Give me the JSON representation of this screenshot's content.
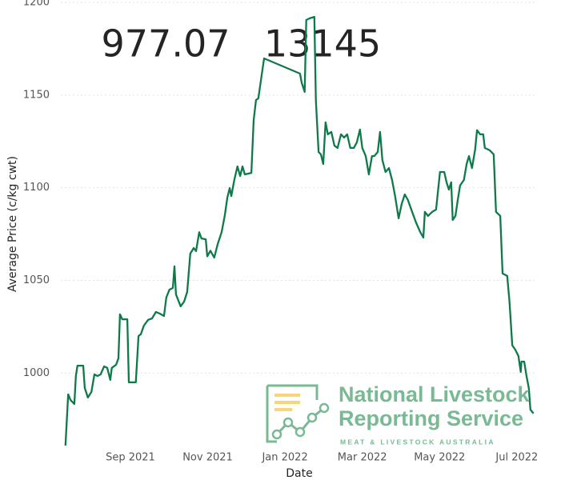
{
  "kpis": [
    "977.07",
    "13145"
  ],
  "logo": {
    "line1": "National Livestock",
    "line2": "Reporting Service",
    "subtitle": "MEAT & LIVESTOCK AUSTRALIA"
  },
  "chart_data": {
    "type": "line",
    "x_label": "Date",
    "y_label": "Average Price (c/kg cwt)",
    "color": "#0e7a4a",
    "grid": true,
    "xlim": [
      6.2,
      18.5
    ],
    "xticks": [
      {
        "value": 8,
        "label": "Sep 2021"
      },
      {
        "value": 10,
        "label": "Nov 2021"
      },
      {
        "value": 12,
        "label": "Jan 2022"
      },
      {
        "value": 14,
        "label": "Mar 2022"
      },
      {
        "value": 16,
        "label": "May 2022"
      },
      {
        "value": 18,
        "label": "Jul 2022"
      }
    ],
    "ylim": [
      960,
      1200
    ],
    "yticks": [
      1000,
      1050,
      1100,
      1150,
      1200
    ],
    "x": [
      6.32,
      6.39,
      6.45,
      6.55,
      6.59,
      6.63,
      6.78,
      6.82,
      6.9,
      6.99,
      7.07,
      7.15,
      7.23,
      7.32,
      7.4,
      7.48,
      7.52,
      7.63,
      7.69,
      7.73,
      7.79,
      7.92,
      7.96,
      8.14,
      8.21,
      8.27,
      8.35,
      8.46,
      8.56,
      8.66,
      8.77,
      8.87,
      8.93,
      9.01,
      9.1,
      9.14,
      9.18,
      9.3,
      9.39,
      9.47,
      9.55,
      9.64,
      9.7,
      9.78,
      9.84,
      9.95,
      9.99,
      10.07,
      10.17,
      10.26,
      10.36,
      10.44,
      10.51,
      10.57,
      10.61,
      10.69,
      10.77,
      10.84,
      10.9,
      10.96,
      11.13,
      11.19,
      11.25,
      11.31,
      11.46,
      12.39,
      12.43,
      12.51,
      12.55,
      12.64,
      12.76,
      12.8,
      12.87,
      12.93,
      12.99,
      13.05,
      13.11,
      13.2,
      13.28,
      13.36,
      13.45,
      13.53,
      13.61,
      13.69,
      13.78,
      13.86,
      13.94,
      14.0,
      14.09,
      14.17,
      14.25,
      14.31,
      14.4,
      14.46,
      14.52,
      14.6,
      14.69,
      14.77,
      14.85,
      14.94,
      15.02,
      15.1,
      15.18,
      15.29,
      15.39,
      15.5,
      15.58,
      15.62,
      15.7,
      15.81,
      15.91,
      16.01,
      16.12,
      16.18,
      16.24,
      16.3,
      16.34,
      16.41,
      16.47,
      16.53,
      16.63,
      16.7,
      16.76,
      16.84,
      16.92,
      16.97,
      17.05,
      17.13,
      17.17,
      17.3,
      17.4,
      17.46,
      17.57,
      17.63,
      17.75,
      17.81,
      17.88,
      17.96,
      18.04,
      18.1,
      18.12,
      18.19,
      18.25,
      18.31,
      18.35,
      18.43
    ],
    "values": [
      960.9,
      988.5,
      985.5,
      983.3,
      998.4,
      1004,
      1004,
      992,
      986.8,
      989.8,
      999.3,
      998.4,
      999.3,
      1003.6,
      1002.8,
      996.3,
      1002.8,
      1004.5,
      1008,
      1031.7,
      1029,
      1029,
      995,
      995,
      1020,
      1021,
      1025.6,
      1028.7,
      1029.5,
      1033,
      1032,
      1030.8,
      1040.7,
      1045,
      1046,
      1057.6,
      1042.4,
      1036,
      1038.6,
      1043.8,
      1064.5,
      1067.5,
      1065.8,
      1076,
      1072.6,
      1072.2,
      1063,
      1066,
      1062.3,
      1069.7,
      1076,
      1084.8,
      1094.7,
      1099.8,
      1095.5,
      1104.2,
      1111.5,
      1106.3,
      1111.5,
      1107.2,
      1108,
      1136.6,
      1147.3,
      1148.2,
      1169.8,
      1161.6,
      1156.8,
      1151.7,
      1190.5,
      1191.4,
      1192.2,
      1147.3,
      1119.3,
      1118,
      1112.8,
      1135.3,
      1128.8,
      1130.1,
      1122.7,
      1121.5,
      1128.8,
      1127.1,
      1128.8,
      1121.5,
      1121.5,
      1124.5,
      1131.4,
      1121.5,
      1117.1,
      1107.2,
      1117.1,
      1117.1,
      1119.3,
      1130.1,
      1115,
      1108.5,
      1110.6,
      1104.2,
      1095.5,
      1083.5,
      1091.2,
      1096.4,
      1093.4,
      1087,
      1081.3,
      1076.1,
      1073.1,
      1087,
      1084.8,
      1087,
      1088.2,
      1108.5,
      1108.5,
      1102.9,
      1099,
      1102.9,
      1082.6,
      1084.8,
      1093.4,
      1101.2,
      1104.2,
      1112.8,
      1117.1,
      1110.6,
      1120.6,
      1131,
      1128.8,
      1128.8,
      1121.5,
      1120.2,
      1118,
      1087,
      1084.8,
      1053.7,
      1052.4,
      1038.2,
      1015,
      1012.6,
      1009.2,
      1000.6,
      1006.2,
      1006.2,
      998.4,
      991.9,
      980.3,
      978.2
    ]
  }
}
